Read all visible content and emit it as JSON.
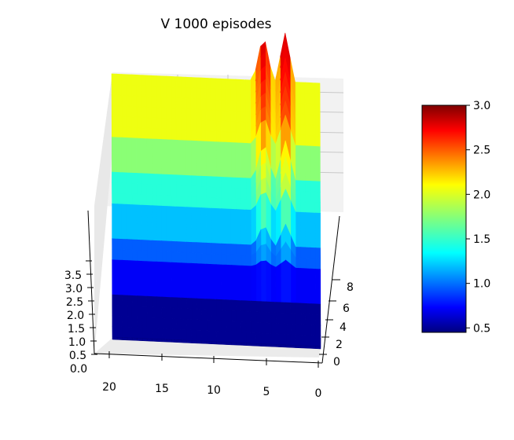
{
  "chart_data": {
    "type": "surface3d",
    "title": "V 1000 episodes",
    "colormap": "jet",
    "x_axis": {
      "ticks": [
        "20",
        "15",
        "10",
        "5",
        "0"
      ],
      "range": [
        0,
        21
      ]
    },
    "y_axis": {
      "ticks": [
        "0",
        "2",
        "4",
        "6",
        "8"
      ],
      "range": [
        0,
        9
      ]
    },
    "z_axis": {
      "ticks": [
        "0.0",
        "0.5",
        "1.0",
        "1.5",
        "2.0",
        "2.5",
        "3.0",
        "3.5"
      ],
      "range": [
        0,
        4
      ]
    },
    "colorbar": {
      "ticks": [
        "0.5",
        "1.0",
        "1.5",
        "2.0",
        "2.5",
        "3.0"
      ],
      "min": 0.45,
      "max": 3.0
    },
    "grid": true,
    "levels": [
      {
        "y": 0,
        "value": 0.5
      },
      {
        "y": 2.5,
        "value": 1.0
      },
      {
        "y": 4,
        "value": 1.5
      },
      {
        "y": 6,
        "value": 2.0
      },
      {
        "y": 9,
        "value": 2.0
      }
    ],
    "peaks": [
      {
        "x": 3.5,
        "value": 3.0
      },
      {
        "x": 5.7,
        "value": 3.0
      }
    ]
  }
}
